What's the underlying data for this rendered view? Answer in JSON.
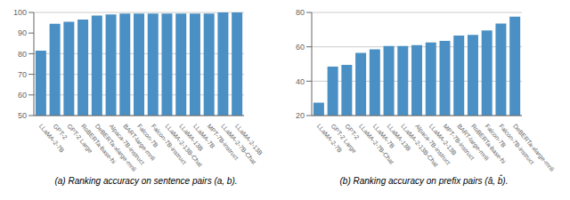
{
  "chart_data": [
    {
      "type": "bar",
      "title": "(a) Ranking accuracy on sentence pairs (a, b).",
      "categories": [
        "LLaMA-2-7B",
        "GPT-2",
        "GPT-2 Large",
        "RoBERTa-base-hi",
        "DeBERTa-xlarge-mnli",
        "Alpaca-7B-instruct",
        "BART-large-mnli",
        "Falcon-7B",
        "Falcon-7B-instruct",
        "LLaMA-2-13B-Chat",
        "LLaMA-13B",
        "LLaMA-7B",
        "MPT-7B-instruct",
        "LLaMA-2-7B-Chat",
        "LLaMA-2-13B"
      ],
      "values": [
        81.5,
        94.5,
        95.5,
        96.5,
        98.5,
        99.0,
        99.5,
        99.5,
        99.5,
        99.5,
        99.5,
        99.5,
        99.5,
        100.0,
        100.0
      ],
      "color": "#4a90c4",
      "ylim": [
        50,
        100
      ],
      "yticks": [
        50,
        60,
        70,
        80,
        90,
        100
      ],
      "grid": true
    },
    {
      "type": "bar",
      "title": "(b) Ranking accuracy on prefix pairs (â, b̂).",
      "categories": [
        "LLaMA-2-7B",
        "GPT-2 Large",
        "GPT-2",
        "LLaMA-2-7B-Chat",
        "LLaMA-7B",
        "LLaMA-13B",
        "LLaMA-2-13B-Chat",
        "Alpaca-7B-instruct",
        "LLaMA-2-13B",
        "MPT-7B-instruct",
        "BART-large-mnli",
        "RoBERTa-base-hi",
        "Falcon-7B",
        "Falcon-7B-instruct",
        "DeBERTa-xlarge-mnli"
      ],
      "values": [
        27.5,
        48.5,
        49.5,
        56.5,
        58.5,
        60.5,
        60.5,
        61.0,
        62.5,
        63.5,
        66.5,
        67.0,
        69.5,
        73.5,
        77.5
      ],
      "color": "#4a90c4",
      "ylim": [
        20,
        80
      ],
      "yticks": [
        20,
        40,
        60,
        80
      ],
      "grid": true
    }
  ]
}
